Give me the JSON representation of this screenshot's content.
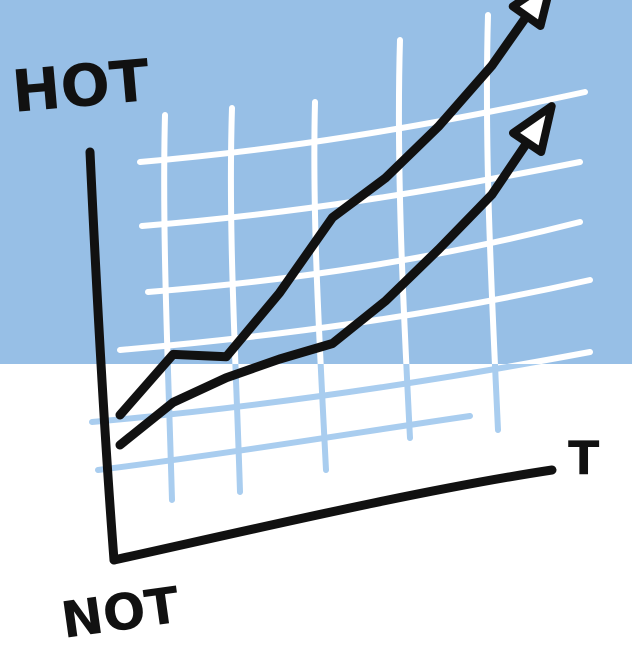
{
  "colors": {
    "sky": "#97bfe6",
    "paper": "#ffffff",
    "grid_on_sky": "#ffffff",
    "grid_on_paper": "#a9cdef",
    "ink": "#111111"
  },
  "labels": {
    "hot": "HOT",
    "not": "NOT",
    "time": "T"
  },
  "chart_data": {
    "type": "line",
    "title": "",
    "xlabel": "T",
    "ylabel_top": "HOT",
    "ylabel_bottom": "NOT",
    "grid": true,
    "x": [
      0,
      1,
      2,
      3,
      4,
      5,
      6,
      7,
      8
    ],
    "series": [
      {
        "values": [
          2.0,
          3.5,
          2.9,
          4.5,
          6.5,
          7.3,
          8.5,
          10.0,
          12.0
        ],
        "arrow_end": true
      },
      {
        "values": [
          1.0,
          1.9,
          2.2,
          2.3,
          2.3,
          3.2,
          4.4,
          5.7,
          7.8
        ],
        "arrow_end": true
      }
    ],
    "ylim": [
      0,
      13
    ]
  }
}
